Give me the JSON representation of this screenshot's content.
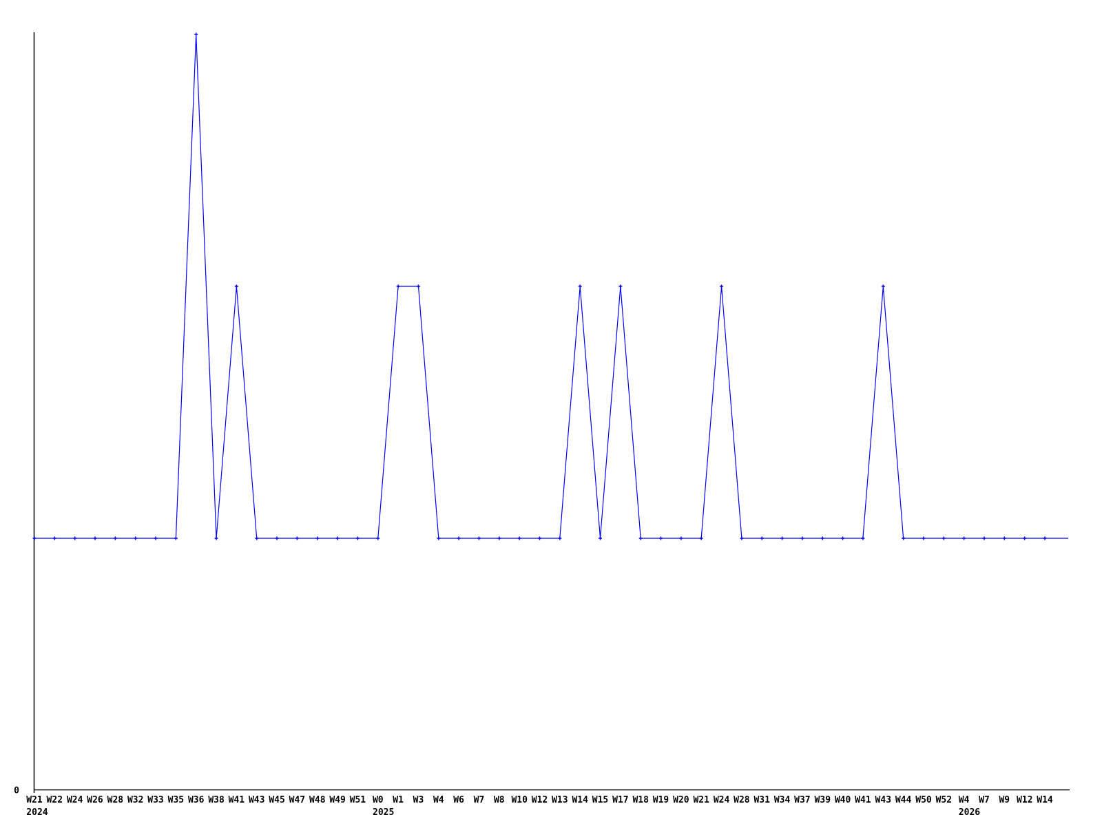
{
  "page": {
    "background_color": "#ffffff",
    "title": ""
  },
  "chart_data": {
    "type": "line",
    "title": "",
    "xlabel": "",
    "ylabel": "",
    "y_origin_label": "0",
    "line_color": "#0000ff",
    "marker_style": "plus",
    "axis_color": "#000000",
    "grid": false,
    "legend": null,
    "ylim": [
      0,
      3
    ],
    "categories": [
      "W21",
      "W22",
      "W24",
      "W26",
      "W28",
      "W32",
      "W33",
      "W35",
      "W36",
      "W38",
      "W41",
      "W43",
      "W45",
      "W47",
      "W48",
      "W49",
      "W51",
      "W0",
      "W1",
      "W3",
      "W4",
      "W6",
      "W7",
      "W8",
      "W10",
      "W12",
      "W13",
      "W14",
      "W15",
      "W17",
      "W18",
      "W19",
      "W20",
      "W21",
      "W24",
      "W28",
      "W31",
      "W34",
      "W37",
      "W39",
      "W40",
      "W41",
      "W43",
      "W44",
      "W50",
      "W52",
      "W4",
      "W7",
      "W9",
      "W12",
      "W14"
    ],
    "values": [
      1,
      1,
      1,
      1,
      1,
      1,
      1,
      1,
      3,
      1,
      2,
      1,
      1,
      1,
      1,
      1,
      1,
      1,
      2,
      2,
      1,
      1,
      1,
      1,
      1,
      1,
      1,
      2,
      1,
      2,
      1,
      1,
      1,
      1,
      2,
      1,
      1,
      1,
      1,
      1,
      1,
      1,
      2,
      1,
      1,
      1,
      1,
      1,
      1,
      1,
      1
    ],
    "year_markers": [
      {
        "index": 0,
        "label": "2024"
      },
      {
        "index": 17,
        "label": "2025"
      },
      {
        "index": 46,
        "label": "2026"
      }
    ]
  }
}
